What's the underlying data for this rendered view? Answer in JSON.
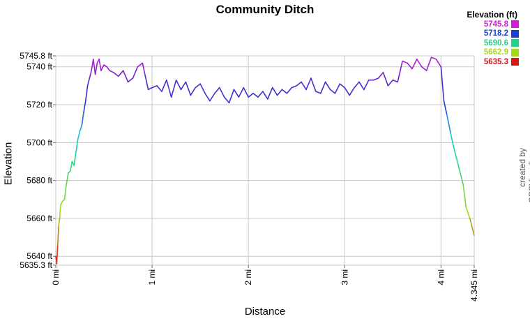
{
  "chart_data": {
    "type": "line",
    "title": "Community Ditch",
    "xlabel": "Distance",
    "ylabel": "Elevation",
    "x_unit": "mi",
    "y_unit": "ft",
    "xlim": [
      0,
      4.345
    ],
    "ylim": [
      5635.3,
      5745.8
    ],
    "x_ticks": [
      {
        "value": 0,
        "label": "0 mi"
      },
      {
        "value": 1,
        "label": "1 mi"
      },
      {
        "value": 2,
        "label": "2 mi"
      },
      {
        "value": 3,
        "label": "3 mi"
      },
      {
        "value": 4,
        "label": "4 mi"
      },
      {
        "value": 4.345,
        "label": "4.345 mi"
      }
    ],
    "y_ticks": [
      {
        "value": 5635.3,
        "label": "5635.3 ft"
      },
      {
        "value": 5640,
        "label": "5640 ft"
      },
      {
        "value": 5660,
        "label": "5660 ft"
      },
      {
        "value": 5680,
        "label": "5680 ft"
      },
      {
        "value": 5700,
        "label": "5700 ft"
      },
      {
        "value": 5720,
        "label": "5720 ft"
      },
      {
        "value": 5740,
        "label": "5740 ft"
      },
      {
        "value": 5745.8,
        "label": "5745.8 ft"
      }
    ],
    "grid": true,
    "legend": {
      "title": "Elevation (ft)",
      "placement": "top-right",
      "entries": [
        {
          "label": "5745.8",
          "color": "#d81bd8"
        },
        {
          "label": "5718.2",
          "color": "#1a3fd0"
        },
        {
          "label": "5690.6",
          "color": "#22d48a"
        },
        {
          "label": "5662.9",
          "color": "#a8d818"
        },
        {
          "label": "5635.3",
          "color": "#d8141a"
        }
      ]
    },
    "series": [
      {
        "x": [
          0,
          0.01,
          0.02,
          0.03,
          0.04,
          0.05,
          0.07,
          0.09,
          0.11,
          0.13,
          0.15,
          0.17,
          0.19,
          0.21,
          0.23,
          0.25,
          0.27,
          0.29,
          0.31,
          0.33,
          0.35,
          0.37,
          0.39,
          0.41,
          0.43,
          0.45,
          0.47,
          0.5,
          0.53,
          0.56,
          0.6,
          0.65,
          0.7,
          0.75,
          0.8,
          0.85,
          0.9,
          0.93,
          0.96,
          1.0,
          1.05,
          1.1,
          1.15,
          1.2,
          1.25,
          1.3,
          1.35,
          1.4,
          1.45,
          1.5,
          1.55,
          1.6,
          1.65,
          1.7,
          1.75,
          1.8,
          1.85,
          1.9,
          1.95,
          2.0,
          2.05,
          2.1,
          2.15,
          2.2,
          2.25,
          2.3,
          2.35,
          2.4,
          2.45,
          2.5,
          2.55,
          2.6,
          2.65,
          2.7,
          2.75,
          2.8,
          2.85,
          2.9,
          2.95,
          3.0,
          3.05,
          3.1,
          3.15,
          3.2,
          3.25,
          3.3,
          3.35,
          3.4,
          3.45,
          3.5,
          3.55,
          3.6,
          3.65,
          3.7,
          3.75,
          3.8,
          3.85,
          3.9,
          3.95,
          4.0,
          4.03,
          4.06,
          4.1,
          4.13,
          4.16,
          4.2,
          4.23,
          4.26,
          4.3,
          4.345
        ],
        "y": [
          5640,
          5636,
          5646,
          5656,
          5660,
          5667,
          5669,
          5670,
          5678,
          5684,
          5685,
          5690,
          5688,
          5695,
          5702,
          5706,
          5709,
          5716,
          5722,
          5730,
          5734,
          5738,
          5744,
          5736,
          5742,
          5744,
          5738,
          5741,
          5740,
          5738,
          5737,
          5735,
          5738,
          5732,
          5734,
          5740,
          5742,
          5735,
          5728,
          5729,
          5730,
          5727,
          5733,
          5724,
          5733,
          5728,
          5732,
          5725,
          5729,
          5731,
          5726,
          5722,
          5726,
          5729,
          5724,
          5721,
          5728,
          5724,
          5729,
          5724,
          5726,
          5724,
          5727,
          5723,
          5729,
          5725,
          5728,
          5726,
          5729,
          5730,
          5732,
          5728,
          5734,
          5727,
          5726,
          5732,
          5728,
          5726,
          5731,
          5729,
          5725,
          5729,
          5732,
          5728,
          5733,
          5733,
          5734,
          5737,
          5730,
          5733,
          5732,
          5743,
          5742,
          5739,
          5744,
          5740,
          5738,
          5745,
          5744,
          5740,
          5722,
          5715,
          5705,
          5698,
          5692,
          5684,
          5678,
          5666,
          5660,
          5651
        ]
      }
    ]
  }
}
